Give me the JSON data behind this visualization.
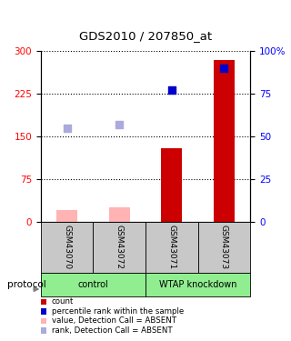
{
  "title": "GDS2010 / 207850_at",
  "samples": [
    "GSM43070",
    "GSM43072",
    "GSM43071",
    "GSM43073"
  ],
  "bar_values": [
    20,
    25,
    130,
    285
  ],
  "rank_values": [
    55,
    57,
    77,
    90
  ],
  "rank_absent": [
    true,
    true,
    false,
    false
  ],
  "ylim_left": [
    0,
    300
  ],
  "ylim_right": [
    0,
    100
  ],
  "yticks_left": [
    0,
    75,
    150,
    225,
    300
  ],
  "yticks_right": [
    0,
    25,
    50,
    75,
    100
  ],
  "ytick_labels_right": [
    "0",
    "25",
    "50",
    "75",
    "100%"
  ],
  "groups": [
    {
      "label": "control",
      "samples": [
        0,
        1
      ]
    },
    {
      "label": "WTAP knockdown",
      "samples": [
        2,
        3
      ]
    }
  ],
  "group_color": "#90ee90",
  "xticklabel_bg": "#c8c8c8",
  "absent_bar_color": "#ffb3b3",
  "present_bar_color": "#cc0000",
  "absent_rank_color": "#aaaadd",
  "present_rank_color": "#0000cc",
  "legend_items": [
    {
      "color": "#cc0000",
      "label": "count"
    },
    {
      "color": "#0000cc",
      "label": "percentile rank within the sample"
    },
    {
      "color": "#ffb3b3",
      "label": "value, Detection Call = ABSENT"
    },
    {
      "color": "#aaaadd",
      "label": "rank, Detection Call = ABSENT"
    }
  ]
}
